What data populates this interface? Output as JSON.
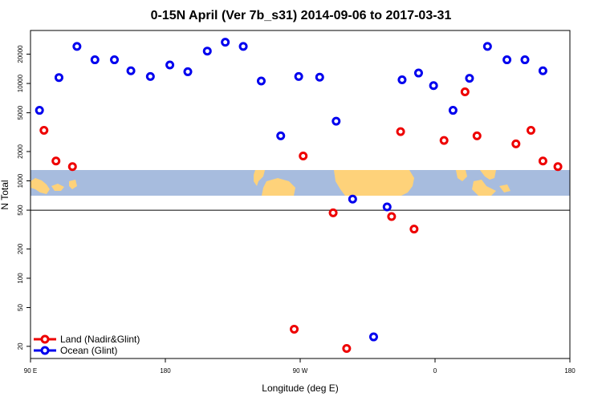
{
  "chart_data": {
    "type": "scatter",
    "title": "0-15N April (Ver 7b_s31)   2014-09-06 to 2017-03-31",
    "xlabel": "Longitude (deg E)",
    "ylabel": "N Total",
    "y_scale": "log",
    "xlim": [
      90,
      450
    ],
    "ylim": [
      15,
      35000
    ],
    "x_ticks": [
      {
        "value": 90,
        "label": "90 E"
      },
      {
        "value": 180,
        "label": "180"
      },
      {
        "value": 270,
        "label": "90 W"
      },
      {
        "value": 360,
        "label": "0"
      },
      {
        "value": 450,
        "label": "180"
      }
    ],
    "y_ticks": [
      {
        "value": 20,
        "label": "20"
      },
      {
        "value": 50,
        "label": "50"
      },
      {
        "value": 100,
        "label": "100"
      },
      {
        "value": 200,
        "label": "200"
      },
      {
        "value": 500,
        "label": "500"
      },
      {
        "value": 1000,
        "label": "1000"
      },
      {
        "value": 2000,
        "label": "2000"
      },
      {
        "value": 5000,
        "label": "5000"
      },
      {
        "value": 10000,
        "label": "10000"
      },
      {
        "value": 20000,
        "label": "20000"
      }
    ],
    "reference_line_y": 500,
    "legend_position": "bottom-left",
    "series": [
      {
        "name": "Land (Nadir&Glint)",
        "color": "#ee0000",
        "points": [
          [
            99,
            3300
          ],
          [
            107,
            1600
          ],
          [
            118,
            1400
          ],
          [
            266,
            30
          ],
          [
            272,
            1800
          ],
          [
            292,
            470
          ],
          [
            301,
            19
          ],
          [
            331,
            430
          ],
          [
            337,
            3200
          ],
          [
            346,
            320
          ],
          [
            366,
            2600
          ],
          [
            380,
            8200
          ],
          [
            388,
            2900
          ],
          [
            414,
            2400
          ],
          [
            424,
            3300
          ],
          [
            432,
            1600
          ],
          [
            442,
            1400
          ]
        ]
      },
      {
        "name": "Ocean (Glint)",
        "color": "#0000ee",
        "points": [
          [
            96,
            5300
          ],
          [
            109,
            11500
          ],
          [
            121,
            24000
          ],
          [
            133,
            17500
          ],
          [
            146,
            17500
          ],
          [
            157,
            13500
          ],
          [
            170,
            11800
          ],
          [
            183,
            15500
          ],
          [
            195,
            13200
          ],
          [
            208,
            21500
          ],
          [
            220,
            26500
          ],
          [
            232,
            24000
          ],
          [
            244,
            10600
          ],
          [
            257,
            2900
          ],
          [
            269,
            11800
          ],
          [
            283,
            11600
          ],
          [
            294,
            4100
          ],
          [
            305,
            650
          ],
          [
            319,
            25
          ],
          [
            328,
            540
          ],
          [
            338,
            10900
          ],
          [
            349,
            12800
          ],
          [
            359,
            9500
          ],
          [
            372,
            5300
          ],
          [
            383,
            11300
          ],
          [
            395,
            24000
          ],
          [
            408,
            17500
          ],
          [
            420,
            17500
          ],
          [
            432,
            13500
          ]
        ]
      }
    ]
  }
}
